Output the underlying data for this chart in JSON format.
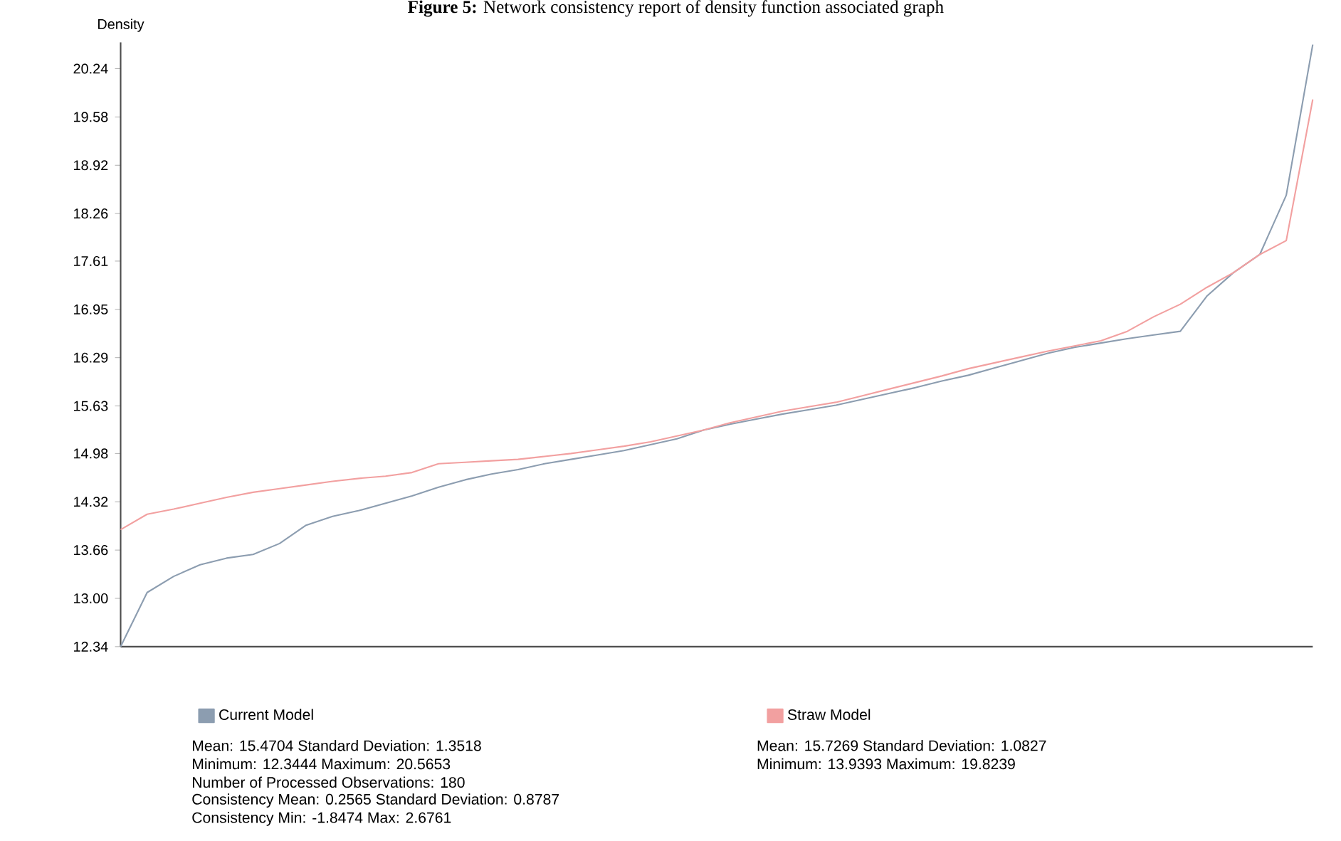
{
  "chart_data": {
    "type": "line",
    "title": "**Figure 5:** Network consistency report of density function associated graph",
    "ylabel": "Density",
    "categories": [
      null,
      null,
      null,
      null,
      null,
      null,
      null,
      null,
      null,
      null,
      null,
      null,
      null,
      null,
      null,
      null,
      null,
      null,
      null,
      null,
      null,
      null,
      null,
      null,
      null,
      null,
      null,
      null,
      null,
      null,
      null,
      null,
      null,
      null,
      null,
      null,
      null,
      null,
      null,
      null,
      null,
      null,
      null,
      null,
      null,
      null
    ],
    "series": [
      {
        "name": "Current Model",
        "color": "#8c9db0",
        "values": [
          12.34,
          13.08,
          13.3,
          13.46,
          13.55,
          13.6,
          13.75,
          14.0,
          14.12,
          14.2,
          14.3,
          14.4,
          14.52,
          14.62,
          14.7,
          14.76,
          14.84,
          14.9,
          14.96,
          15.02,
          15.1,
          15.18,
          15.3,
          15.38,
          15.45,
          15.52,
          15.58,
          15.64,
          15.72,
          15.8,
          15.88,
          15.97,
          16.05,
          16.15,
          16.25,
          16.35,
          16.43,
          16.49,
          16.55,
          16.6,
          16.65,
          17.13,
          17.45,
          17.7,
          18.51,
          20.57
        ]
      },
      {
        "name": "Straw Model",
        "color": "#f2a0a0",
        "values": [
          13.94,
          14.15,
          14.22,
          14.3,
          14.38,
          14.45,
          14.5,
          14.55,
          14.6,
          14.64,
          14.67,
          14.72,
          14.84,
          14.86,
          14.88,
          14.9,
          14.94,
          14.98,
          15.03,
          15.08,
          15.14,
          15.22,
          15.3,
          15.4,
          15.48,
          15.56,
          15.62,
          15.68,
          15.77,
          15.86,
          15.95,
          16.04,
          16.14,
          16.22,
          16.3,
          16.38,
          16.45,
          16.52,
          16.65,
          16.85,
          17.02,
          17.25,
          17.45,
          17.7,
          17.89,
          19.82
        ]
      }
    ],
    "ylim": [
      12.34,
      20.6
    ],
    "yticks": [
      12.34,
      {
        "value": 13.0,
        "label": "13.00"
      },
      13.66,
      14.32,
      14.98,
      15.63,
      16.29,
      16.95,
      17.61,
      18.26,
      18.92,
      19.58,
      20.24
    ],
    "legend": "bottom",
    "annotations": [
      "Mean: 15.4704 Standard Deviation: 1.3518",
      "Minimum: 12.3444 Maximum: 20.5653",
      "Number of Processed Observations: 180",
      "Consistency Mean: 0.2565 Standard Deviation: 0.8787",
      "Consistency Min: -1.8474 Max: 2.6761",
      "Mean: 15.7269 Standard Deviation: 1.0827",
      "Minimum: 13.9393 Maximum: 19.8239"
    ]
  }
}
